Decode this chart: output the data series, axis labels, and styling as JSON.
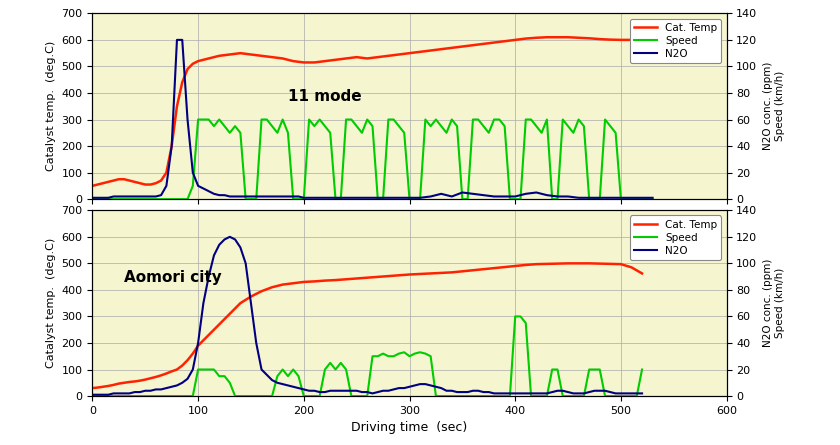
{
  "background_color": "#f5f5d0",
  "figure_background": "#ffffff",
  "xlim": [
    0,
    600
  ],
  "xlabel": "Driving time  (sec)",
  "left_ylim": [
    0,
    700
  ],
  "left_ylabel": "Catalyst temp.  (deg.C)",
  "right_ylim": [
    0,
    140
  ],
  "right_ylabel": "N2O conc. (ppm)\nSpeed (km/h)",
  "left_yticks": [
    0,
    100,
    200,
    300,
    400,
    500,
    600,
    700
  ],
  "right_yticks": [
    0,
    20,
    40,
    60,
    80,
    100,
    120,
    140
  ],
  "xticks": [
    0,
    100,
    200,
    300,
    400,
    500,
    600
  ],
  "panel1_label": "11 mode",
  "panel2_label": "Aomori city",
  "cat_color": "#ff2200",
  "speed_color": "#00cc00",
  "n2o_color": "#000080",
  "legend_entries": [
    "Cat. Temp",
    "Speed",
    "N2O"
  ],
  "p1_cat_x": [
    0,
    5,
    10,
    15,
    20,
    25,
    30,
    35,
    40,
    45,
    50,
    55,
    60,
    65,
    70,
    75,
    80,
    85,
    90,
    95,
    100,
    110,
    120,
    130,
    140,
    150,
    160,
    170,
    180,
    190,
    200,
    210,
    220,
    230,
    240,
    250,
    260,
    270,
    280,
    290,
    300,
    310,
    320,
    330,
    340,
    350,
    360,
    370,
    380,
    390,
    400,
    410,
    420,
    430,
    440,
    450,
    460,
    470,
    480,
    490,
    500,
    510,
    520,
    530
  ],
  "p1_cat_y": [
    50,
    55,
    60,
    65,
    70,
    75,
    75,
    70,
    65,
    60,
    55,
    55,
    60,
    70,
    100,
    200,
    350,
    440,
    490,
    510,
    520,
    530,
    540,
    545,
    550,
    545,
    540,
    535,
    530,
    520,
    515,
    515,
    520,
    525,
    530,
    535,
    530,
    535,
    540,
    545,
    550,
    555,
    560,
    565,
    570,
    575,
    580,
    585,
    590,
    595,
    600,
    605,
    608,
    610,
    610,
    610,
    608,
    606,
    603,
    601,
    600,
    600,
    600,
    600
  ],
  "p1_speed_x": [
    0,
    60,
    65,
    70,
    75,
    80,
    85,
    90,
    95,
    100,
    105,
    110,
    115,
    120,
    125,
    130,
    135,
    140,
    145,
    150,
    155,
    160,
    165,
    170,
    175,
    180,
    185,
    190,
    195,
    200,
    205,
    210,
    215,
    220,
    225,
    230,
    235,
    240,
    245,
    250,
    255,
    260,
    265,
    270,
    275,
    280,
    285,
    290,
    295,
    300,
    305,
    310,
    315,
    320,
    325,
    330,
    335,
    340,
    345,
    350,
    355,
    360,
    365,
    370,
    375,
    380,
    385,
    390,
    395,
    400,
    405,
    410,
    415,
    420,
    425,
    430,
    435,
    440,
    445,
    450,
    455,
    460,
    465,
    470,
    475,
    480,
    485,
    490,
    495,
    500,
    505,
    510,
    515,
    520,
    525,
    530
  ],
  "p1_speed_y": [
    0,
    0,
    0,
    0,
    0,
    0,
    0,
    0,
    10,
    60,
    60,
    60,
    55,
    60,
    55,
    50,
    55,
    50,
    0,
    0,
    0,
    60,
    60,
    55,
    50,
    60,
    50,
    0,
    0,
    0,
    60,
    55,
    60,
    55,
    50,
    0,
    0,
    60,
    60,
    55,
    50,
    60,
    55,
    0,
    0,
    60,
    60,
    55,
    50,
    0,
    0,
    0,
    60,
    55,
    60,
    55,
    50,
    60,
    55,
    0,
    0,
    60,
    60,
    55,
    50,
    60,
    60,
    55,
    0,
    0,
    0,
    60,
    60,
    55,
    50,
    60,
    0,
    0,
    60,
    55,
    50,
    60,
    55,
    0,
    0,
    0,
    60,
    55,
    50,
    0,
    0,
    0,
    0,
    0,
    0,
    0
  ],
  "p1_n2o_x": [
    0,
    5,
    10,
    15,
    20,
    25,
    30,
    35,
    40,
    45,
    50,
    55,
    60,
    65,
    70,
    75,
    80,
    85,
    90,
    95,
    100,
    105,
    110,
    115,
    120,
    125,
    130,
    135,
    140,
    145,
    150,
    155,
    160,
    165,
    170,
    175,
    180,
    185,
    190,
    195,
    200,
    210,
    220,
    230,
    240,
    250,
    260,
    270,
    280,
    290,
    300,
    310,
    320,
    330,
    340,
    350,
    360,
    370,
    380,
    390,
    400,
    410,
    420,
    430,
    440,
    450,
    460,
    470,
    480,
    490,
    500,
    510,
    520,
    530
  ],
  "p1_n2o_y": [
    1,
    1,
    1,
    1,
    2,
    2,
    2,
    2,
    2,
    2,
    2,
    2,
    2,
    3,
    10,
    40,
    120,
    120,
    60,
    20,
    10,
    8,
    6,
    4,
    3,
    3,
    2,
    2,
    2,
    2,
    2,
    2,
    2,
    2,
    2,
    2,
    2,
    2,
    2,
    2,
    1,
    1,
    1,
    1,
    1,
    1,
    1,
    1,
    1,
    1,
    1,
    1,
    2,
    4,
    2,
    5,
    4,
    3,
    2,
    2,
    2,
    4,
    5,
    3,
    2,
    2,
    1,
    1,
    1,
    1,
    1,
    1,
    1,
    1
  ],
  "p2_cat_x": [
    0,
    5,
    10,
    15,
    20,
    25,
    30,
    35,
    40,
    45,
    50,
    55,
    60,
    65,
    70,
    75,
    80,
    85,
    90,
    95,
    100,
    110,
    120,
    130,
    140,
    150,
    160,
    170,
    180,
    190,
    200,
    210,
    220,
    230,
    240,
    250,
    260,
    270,
    280,
    290,
    300,
    310,
    320,
    330,
    340,
    350,
    360,
    370,
    380,
    390,
    400,
    410,
    420,
    430,
    440,
    450,
    460,
    470,
    480,
    490,
    500,
    510,
    520
  ],
  "p2_cat_y": [
    30,
    32,
    35,
    38,
    42,
    47,
    50,
    53,
    55,
    58,
    62,
    67,
    72,
    78,
    85,
    93,
    100,
    115,
    135,
    160,
    190,
    230,
    270,
    310,
    350,
    375,
    395,
    410,
    420,
    425,
    430,
    432,
    435,
    437,
    440,
    443,
    446,
    449,
    452,
    455,
    458,
    460,
    462,
    464,
    466,
    470,
    474,
    478,
    482,
    486,
    490,
    494,
    497,
    498,
    499,
    500,
    500,
    500,
    499,
    498,
    497,
    485,
    462
  ],
  "p2_speed_x": [
    0,
    5,
    10,
    15,
    20,
    25,
    30,
    35,
    40,
    45,
    50,
    55,
    60,
    65,
    70,
    75,
    80,
    85,
    90,
    95,
    100,
    105,
    110,
    115,
    120,
    125,
    130,
    135,
    140,
    145,
    150,
    155,
    160,
    165,
    170,
    175,
    180,
    185,
    190,
    195,
    200,
    205,
    210,
    215,
    220,
    225,
    230,
    235,
    240,
    245,
    250,
    255,
    260,
    265,
    270,
    275,
    280,
    285,
    290,
    295,
    300,
    305,
    310,
    315,
    320,
    325,
    330,
    335,
    340,
    345,
    350,
    355,
    360,
    365,
    370,
    375,
    380,
    385,
    390,
    395,
    400,
    405,
    410,
    415,
    420,
    425,
    430,
    435,
    440,
    445,
    450,
    455,
    460,
    465,
    470,
    475,
    480,
    485,
    490,
    495,
    500,
    505,
    510,
    515,
    520
  ],
  "p2_speed_y": [
    0,
    0,
    0,
    0,
    0,
    0,
    0,
    0,
    0,
    0,
    0,
    0,
    0,
    0,
    0,
    0,
    0,
    0,
    0,
    0,
    20,
    20,
    20,
    20,
    15,
    15,
    10,
    0,
    0,
    0,
    0,
    0,
    0,
    0,
    0,
    15,
    20,
    15,
    20,
    15,
    0,
    0,
    0,
    0,
    20,
    25,
    20,
    25,
    20,
    0,
    0,
    0,
    0,
    30,
    30,
    32,
    30,
    30,
    32,
    33,
    30,
    32,
    33,
    32,
    30,
    0,
    0,
    0,
    0,
    0,
    0,
    0,
    0,
    0,
    0,
    0,
    0,
    0,
    0,
    0,
    60,
    60,
    55,
    0,
    0,
    0,
    0,
    20,
    20,
    0,
    0,
    0,
    0,
    0,
    20,
    20,
    20,
    0,
    0,
    0,
    0,
    0,
    0,
    0,
    20
  ],
  "p2_n2o_x": [
    0,
    5,
    10,
    15,
    20,
    25,
    30,
    35,
    40,
    45,
    50,
    55,
    60,
    65,
    70,
    75,
    80,
    85,
    90,
    95,
    100,
    105,
    110,
    115,
    120,
    125,
    130,
    135,
    140,
    145,
    150,
    155,
    160,
    165,
    170,
    175,
    180,
    185,
    190,
    195,
    200,
    205,
    210,
    215,
    220,
    225,
    230,
    235,
    240,
    245,
    250,
    255,
    260,
    265,
    270,
    275,
    280,
    285,
    290,
    295,
    300,
    305,
    310,
    315,
    320,
    325,
    330,
    335,
    340,
    345,
    350,
    355,
    360,
    365,
    370,
    375,
    380,
    385,
    390,
    395,
    400,
    405,
    410,
    415,
    420,
    425,
    430,
    435,
    440,
    445,
    450,
    455,
    460,
    465,
    470,
    475,
    480,
    485,
    490,
    495,
    500,
    505,
    510,
    515,
    520
  ],
  "p2_n2o_y": [
    1,
    1,
    1,
    1,
    2,
    2,
    2,
    2,
    3,
    3,
    4,
    4,
    5,
    5,
    6,
    7,
    8,
    10,
    13,
    20,
    40,
    70,
    90,
    106,
    114,
    118,
    120,
    118,
    112,
    100,
    70,
    40,
    20,
    16,
    12,
    10,
    9,
    8,
    7,
    6,
    5,
    4,
    4,
    3,
    3,
    4,
    4,
    4,
    4,
    4,
    4,
    3,
    3,
    2,
    3,
    4,
    4,
    5,
    6,
    6,
    7,
    8,
    9,
    9,
    8,
    7,
    6,
    4,
    4,
    3,
    3,
    3,
    4,
    4,
    3,
    3,
    2,
    2,
    2,
    2,
    2,
    2,
    2,
    2,
    2,
    2,
    2,
    3,
    4,
    4,
    3,
    2,
    2,
    2,
    3,
    4,
    4,
    4,
    3,
    2,
    2,
    2,
    2,
    2,
    2
  ]
}
